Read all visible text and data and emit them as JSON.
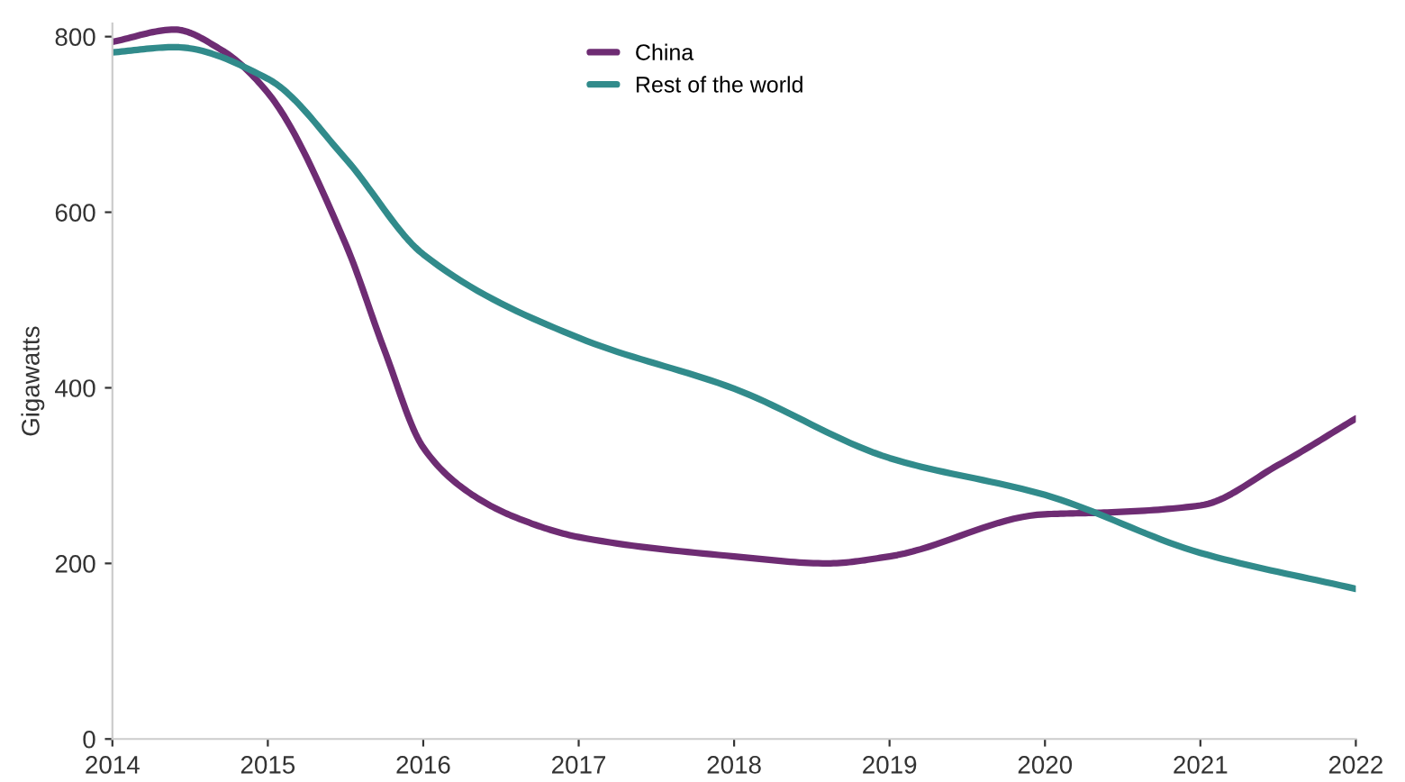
{
  "chart_data": {
    "type": "line",
    "ylabel": "Gigawatts",
    "series": [
      {
        "name": "China",
        "color": "#6e2c73",
        "x": [
          2014,
          2014.4,
          2014.7,
          2015,
          2015.5,
          2015.75,
          2016,
          2016.3,
          2016.6,
          2017,
          2018,
          2018.6,
          2019,
          2020,
          2020.4,
          2021,
          2021.5,
          2022
        ],
        "values": [
          794,
          808,
          785,
          736,
          564,
          443,
          332,
          280,
          252,
          230,
          208,
          200,
          208,
          256,
          258,
          266,
          312,
          365
        ]
      },
      {
        "name": "Rest of the world",
        "color": "#318b8b",
        "x": [
          2014,
          2014.4,
          2015,
          2015.5,
          2016,
          2017,
          2018,
          2019,
          2020,
          2021,
          2022
        ],
        "values": [
          782,
          788,
          752,
          661,
          552,
          457,
          399,
          320,
          278,
          212,
          171
        ]
      }
    ],
    "xlim": [
      2014,
      2022
    ],
    "xticks": [
      2014,
      2015,
      2016,
      2017,
      2018,
      2019,
      2020,
      2021,
      2022
    ],
    "ylim": [
      0,
      815
    ],
    "yticks": [
      0,
      200,
      400,
      600,
      800
    ],
    "grid": false,
    "legend": "top",
    "marker": "none",
    "line_style": "solid"
  }
}
